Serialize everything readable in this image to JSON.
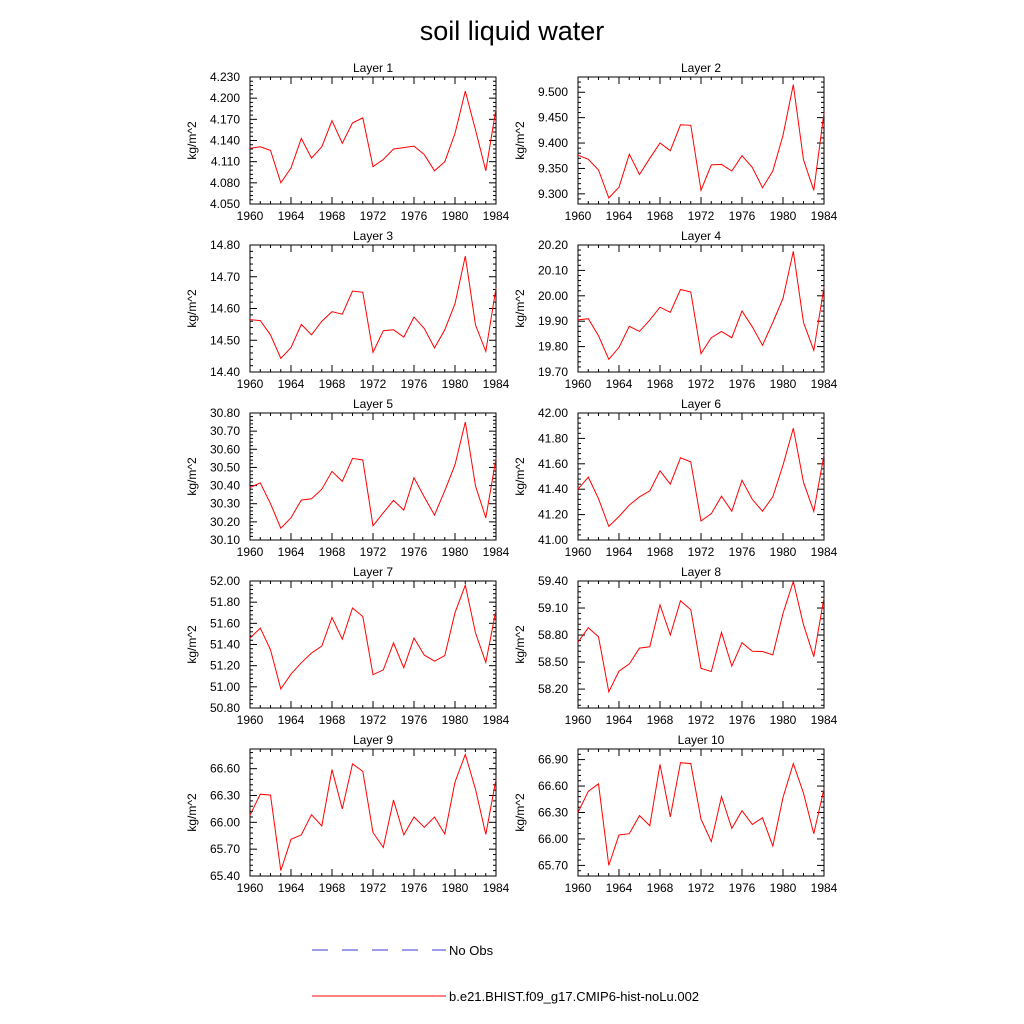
{
  "figure_title": "soil liquid water",
  "legend": [
    {
      "label": "No Obs",
      "color": "#3a3ad0",
      "style": "dashed"
    },
    {
      "label": "b.e21.BHIST.f09_g17.CMIP6-hist-noLu.002",
      "color": "#ff0000",
      "style": "solid"
    }
  ],
  "chart_data": [
    {
      "type": "line",
      "title": "Layer 1",
      "ylabel": "kg/m^2",
      "xticks": [
        "1960",
        "1964",
        "1968",
        "1972",
        "1976",
        "1980",
        "1984"
      ],
      "xlim": [
        1960,
        1984
      ],
      "ylim": [
        4.05,
        4.23
      ],
      "yticks": [
        "4.050",
        "4.080",
        "4.110",
        "4.140",
        "4.170",
        "4.200",
        "4.230"
      ],
      "x": [
        1960,
        1961,
        1962,
        1963,
        1964,
        1965,
        1966,
        1967,
        1968,
        1969,
        1970,
        1971,
        1972,
        1973,
        1974,
        1975,
        1976,
        1977,
        1978,
        1979,
        1980,
        1981,
        1982,
        1983,
        1984
      ],
      "series": [
        {
          "name": "b.e21.BHIST.f09_g17.CMIP6-hist-noLu.002",
          "color": "#ff0000",
          "values": [
            4.129,
            4.131,
            4.126,
            4.08,
            4.101,
            4.143,
            4.115,
            4.131,
            4.168,
            4.136,
            4.165,
            4.172,
            4.103,
            4.113,
            4.128,
            4.13,
            4.132,
            4.12,
            4.097,
            4.11,
            4.15,
            4.21,
            4.155,
            4.097,
            4.185
          ]
        }
      ]
    },
    {
      "type": "line",
      "title": "Layer 2",
      "ylabel": "kg/m^2",
      "xticks": [
        "1960",
        "1964",
        "1968",
        "1972",
        "1976",
        "1980",
        "1984"
      ],
      "xlim": [
        1960,
        1984
      ],
      "ylim": [
        9.28,
        9.53
      ],
      "yticks": [
        "9.300",
        "9.350",
        "9.400",
        "9.450",
        "9.500"
      ],
      "x": [
        1960,
        1961,
        1962,
        1963,
        1964,
        1965,
        1966,
        1967,
        1968,
        1969,
        1970,
        1971,
        1972,
        1973,
        1974,
        1975,
        1976,
        1977,
        1978,
        1979,
        1980,
        1981,
        1982,
        1983,
        1984
      ],
      "series": [
        {
          "name": "b.e21.BHIST.f09_g17.CMIP6-hist-noLu.002",
          "color": "#ff0000",
          "values": [
            9.376,
            9.368,
            9.347,
            9.292,
            9.313,
            9.378,
            9.338,
            9.37,
            9.4,
            9.385,
            9.436,
            9.435,
            9.307,
            9.357,
            9.358,
            9.345,
            9.375,
            9.352,
            9.312,
            9.345,
            9.415,
            9.515,
            9.367,
            9.307,
            9.46
          ]
        }
      ]
    },
    {
      "type": "line",
      "title": "Layer 3",
      "ylabel": "kg/m^2",
      "xticks": [
        "1960",
        "1964",
        "1968",
        "1972",
        "1976",
        "1980",
        "1984"
      ],
      "xlim": [
        1960,
        1984
      ],
      "ylim": [
        14.4,
        14.8
      ],
      "yticks": [
        "14.40",
        "14.50",
        "14.60",
        "14.70",
        "14.80"
      ],
      "x": [
        1960,
        1961,
        1962,
        1963,
        1964,
        1965,
        1966,
        1967,
        1968,
        1969,
        1970,
        1971,
        1972,
        1973,
        1974,
        1975,
        1976,
        1977,
        1978,
        1979,
        1980,
        1981,
        1982,
        1983,
        1984
      ],
      "series": [
        {
          "name": "b.e21.BHIST.f09_g17.CMIP6-hist-noLu.002",
          "color": "#ff0000",
          "values": [
            14.565,
            14.562,
            14.517,
            14.443,
            14.477,
            14.55,
            14.517,
            14.56,
            14.59,
            14.582,
            14.655,
            14.651,
            14.462,
            14.53,
            14.533,
            14.51,
            14.573,
            14.537,
            14.476,
            14.533,
            14.615,
            14.765,
            14.548,
            14.465,
            14.665
          ]
        }
      ]
    },
    {
      "type": "line",
      "title": "Layer 4",
      "ylabel": "kg/m^2",
      "xticks": [
        "1960",
        "1964",
        "1968",
        "1972",
        "1976",
        "1980",
        "1984"
      ],
      "xlim": [
        1960,
        1984
      ],
      "ylim": [
        19.7,
        20.2
      ],
      "yticks": [
        "19.70",
        "19.80",
        "19.90",
        "20.00",
        "20.10",
        "20.20"
      ],
      "x": [
        1960,
        1961,
        1962,
        1963,
        1964,
        1965,
        1966,
        1967,
        1968,
        1969,
        1970,
        1971,
        1972,
        1973,
        1974,
        1975,
        1976,
        1977,
        1978,
        1979,
        1980,
        1981,
        1982,
        1983,
        1984
      ],
      "series": [
        {
          "name": "b.e21.BHIST.f09_g17.CMIP6-hist-noLu.002",
          "color": "#ff0000",
          "values": [
            19.905,
            19.91,
            19.843,
            19.75,
            19.797,
            19.88,
            19.86,
            19.905,
            19.955,
            19.935,
            20.025,
            20.015,
            19.772,
            19.835,
            19.86,
            19.835,
            19.94,
            19.878,
            19.805,
            19.895,
            19.99,
            20.175,
            19.895,
            19.785,
            20.035
          ]
        }
      ]
    },
    {
      "type": "line",
      "title": "Layer 5",
      "ylabel": "kg/m^2",
      "xticks": [
        "1960",
        "1964",
        "1968",
        "1972",
        "1976",
        "1980",
        "1984"
      ],
      "xlim": [
        1960,
        1984
      ],
      "ylim": [
        30.1,
        30.8
      ],
      "yticks": [
        "30.10",
        "30.20",
        "30.30",
        "30.40",
        "30.50",
        "30.60",
        "30.70",
        "30.80"
      ],
      "x": [
        1960,
        1961,
        1962,
        1963,
        1964,
        1965,
        1966,
        1967,
        1968,
        1969,
        1970,
        1971,
        1972,
        1973,
        1974,
        1975,
        1976,
        1977,
        1978,
        1979,
        1980,
        1981,
        1982,
        1983,
        1984
      ],
      "series": [
        {
          "name": "b.e21.BHIST.f09_g17.CMIP6-hist-noLu.002",
          "color": "#ff0000",
          "values": [
            30.39,
            30.415,
            30.3,
            30.165,
            30.223,
            30.32,
            30.327,
            30.38,
            30.478,
            30.423,
            30.55,
            30.541,
            30.178,
            30.25,
            30.318,
            30.265,
            30.443,
            30.337,
            30.237,
            30.372,
            30.515,
            30.75,
            30.398,
            30.222,
            30.55
          ]
        }
      ]
    },
    {
      "type": "line",
      "title": "Layer 6",
      "ylabel": "kg/m^2",
      "xticks": [
        "1960",
        "1964",
        "1968",
        "1972",
        "1976",
        "1980",
        "1984"
      ],
      "xlim": [
        1960,
        1984
      ],
      "ylim": [
        41.0,
        42.0
      ],
      "yticks": [
        "41.00",
        "41.20",
        "41.40",
        "41.60",
        "41.80",
        "42.00"
      ],
      "x": [
        1960,
        1961,
        1962,
        1963,
        1964,
        1965,
        1966,
        1967,
        1968,
        1969,
        1970,
        1971,
        1972,
        1973,
        1974,
        1975,
        1976,
        1977,
        1978,
        1979,
        1980,
        1981,
        1982,
        1983,
        1984
      ],
      "series": [
        {
          "name": "b.e21.BHIST.f09_g17.CMIP6-hist-noLu.002",
          "color": "#ff0000",
          "values": [
            41.4,
            41.495,
            41.325,
            41.107,
            41.185,
            41.275,
            41.34,
            41.387,
            41.545,
            41.44,
            41.647,
            41.615,
            41.15,
            41.207,
            41.345,
            41.227,
            41.47,
            41.32,
            41.227,
            41.34,
            41.59,
            41.88,
            41.455,
            41.225,
            41.67
          ]
        }
      ]
    },
    {
      "type": "line",
      "title": "Layer 7",
      "ylabel": "kg/m^2",
      "xticks": [
        "1960",
        "1964",
        "1968",
        "1972",
        "1976",
        "1980",
        "1984"
      ],
      "xlim": [
        1960,
        1984
      ],
      "ylim": [
        50.8,
        52.0
      ],
      "yticks": [
        "50.80",
        "51.00",
        "51.20",
        "51.40",
        "51.60",
        "51.80",
        "52.00"
      ],
      "x": [
        1960,
        1961,
        1962,
        1963,
        1964,
        1965,
        1966,
        1967,
        1968,
        1969,
        1970,
        1971,
        1972,
        1973,
        1974,
        1975,
        1976,
        1977,
        1978,
        1979,
        1980,
        1981,
        1982,
        1983,
        1984
      ],
      "series": [
        {
          "name": "b.e21.BHIST.f09_g17.CMIP6-hist-noLu.002",
          "color": "#ff0000",
          "values": [
            51.46,
            51.555,
            51.35,
            50.98,
            51.12,
            51.227,
            51.32,
            51.385,
            51.655,
            51.45,
            51.745,
            51.665,
            51.115,
            51.16,
            51.415,
            51.18,
            51.46,
            51.3,
            51.242,
            51.295,
            51.7,
            51.96,
            51.51,
            51.23,
            51.725
          ]
        }
      ]
    },
    {
      "type": "line",
      "title": "Layer 8",
      "ylabel": "kg/m^2",
      "xticks": [
        "1960",
        "1964",
        "1968",
        "1972",
        "1976",
        "1980",
        "1984"
      ],
      "xlim": [
        1960,
        1984
      ],
      "ylim": [
        57.99,
        59.4
      ],
      "yticks": [
        "58.20",
        "58.50",
        "58.80",
        "59.10",
        "59.40"
      ],
      "x": [
        1960,
        1961,
        1962,
        1963,
        1964,
        1965,
        1966,
        1967,
        1968,
        1969,
        1970,
        1971,
        1972,
        1973,
        1974,
        1975,
        1976,
        1977,
        1978,
        1979,
        1980,
        1981,
        1982,
        1983,
        1984
      ],
      "series": [
        {
          "name": "b.e21.BHIST.f09_g17.CMIP6-hist-noLu.002",
          "color": "#ff0000",
          "values": [
            58.72,
            58.88,
            58.78,
            58.17,
            58.4,
            58.48,
            58.655,
            58.67,
            59.135,
            58.8,
            59.18,
            59.08,
            58.43,
            58.395,
            58.83,
            58.455,
            58.715,
            58.62,
            58.617,
            58.58,
            59.04,
            59.395,
            58.915,
            58.56,
            59.215
          ]
        }
      ]
    },
    {
      "type": "line",
      "title": "Layer 9",
      "ylabel": "kg/m^2",
      "xticks": [
        "1960",
        "1964",
        "1968",
        "1972",
        "1976",
        "1980",
        "1984"
      ],
      "xlim": [
        1960,
        1984
      ],
      "ylim": [
        65.4,
        66.82
      ],
      "yticks": [
        "65.40",
        "65.70",
        "66.00",
        "66.30",
        "66.60"
      ],
      "x": [
        1960,
        1961,
        1962,
        1963,
        1964,
        1965,
        1966,
        1967,
        1968,
        1969,
        1970,
        1971,
        1972,
        1973,
        1974,
        1975,
        1976,
        1977,
        1978,
        1979,
        1980,
        1981,
        1982,
        1983,
        1984
      ],
      "series": [
        {
          "name": "b.e21.BHIST.f09_g17.CMIP6-hist-noLu.002",
          "color": "#ff0000",
          "values": [
            66.08,
            66.315,
            66.305,
            65.46,
            65.81,
            65.86,
            66.085,
            65.96,
            66.59,
            66.15,
            66.655,
            66.57,
            65.885,
            65.72,
            66.25,
            65.86,
            66.06,
            65.945,
            66.06,
            65.87,
            66.45,
            66.76,
            66.37,
            65.865,
            66.48
          ]
        }
      ]
    },
    {
      "type": "line",
      "title": "Layer 10",
      "ylabel": "kg/m^2",
      "xticks": [
        "1960",
        "1964",
        "1968",
        "1972",
        "1976",
        "1980",
        "1984"
      ],
      "xlim": [
        1960,
        1984
      ],
      "ylim": [
        65.58,
        67.02
      ],
      "yticks": [
        "65.70",
        "66.00",
        "66.30",
        "66.60",
        "66.90"
      ],
      "x": [
        1960,
        1961,
        1962,
        1963,
        1964,
        1965,
        1966,
        1967,
        1968,
        1969,
        1970,
        1971,
        1972,
        1973,
        1974,
        1975,
        1976,
        1977,
        1978,
        1979,
        1980,
        1981,
        1982,
        1983,
        1984
      ],
      "series": [
        {
          "name": "b.e21.BHIST.f09_g17.CMIP6-hist-noLu.002",
          "color": "#ff0000",
          "values": [
            66.3,
            66.54,
            66.625,
            65.7,
            66.045,
            66.06,
            66.265,
            66.15,
            66.845,
            66.25,
            66.865,
            66.855,
            66.225,
            65.97,
            66.48,
            66.12,
            66.32,
            66.165,
            66.24,
            65.92,
            66.47,
            66.855,
            66.52,
            66.06,
            66.57
          ]
        }
      ]
    }
  ]
}
